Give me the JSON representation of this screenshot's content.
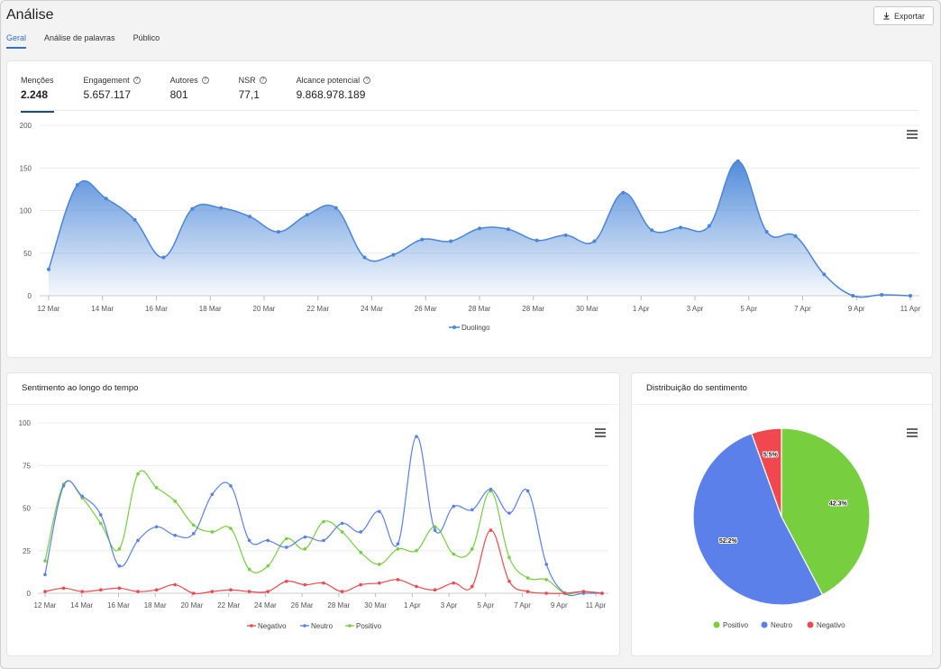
{
  "header": {
    "title": "Análise",
    "export_label": "Exportar",
    "tabs": [
      {
        "label": "Geral",
        "active": true
      },
      {
        "label": "Análise de palavras",
        "active": false
      },
      {
        "label": "Público",
        "active": false
      }
    ]
  },
  "kpis": [
    {
      "label": "Menções",
      "value": "2.248",
      "active": true,
      "help": false
    },
    {
      "label": "Engagement",
      "value": "5.657.117",
      "active": false,
      "help": true
    },
    {
      "label": "Autores",
      "value": "801",
      "active": false,
      "help": true
    },
    {
      "label": "NSR",
      "value": "77,1",
      "active": false,
      "help": true
    },
    {
      "label": "Alcance potencial",
      "value": "9.868.978.189",
      "active": false,
      "help": true
    }
  ],
  "icons": {
    "help": "?",
    "download": "download-icon",
    "menu": "hamburger-menu-icon"
  },
  "colors": {
    "accent": "#2f6fd1",
    "duolingo": "#4a86d8",
    "negativo": "#f0484e",
    "neutro": "#5b80ea",
    "positivo": "#77cf40"
  },
  "chart_data": [
    {
      "type": "area",
      "title": "",
      "xlabel": "",
      "ylabel": "",
      "x_ticks": [
        "12 Mar",
        "14 Mar",
        "16 Mar",
        "18 Mar",
        "20 Mar",
        "22 Mar",
        "24 Mar",
        "26 Mar",
        "28 Mar",
        "28 Mar",
        "30 Mar",
        "1 Apr",
        "3 Apr",
        "5 Apr",
        "7 Apr",
        "9 Apr",
        "11 Apr"
      ],
      "y_ticks": [
        "0",
        "50",
        "100",
        "150",
        "200"
      ],
      "ylim": [
        0,
        200
      ],
      "grid": true,
      "legend": "bottom-center",
      "series": [
        {
          "name": "Duolingo",
          "values": [
            31,
            130,
            114,
            89,
            45,
            102,
            103,
            93,
            75,
            95,
            103,
            45,
            48,
            66,
            64,
            79,
            78,
            65,
            71,
            64,
            121,
            77,
            80,
            82,
            158,
            75,
            70,
            25,
            0,
            1,
            0
          ]
        }
      ]
    },
    {
      "type": "line",
      "title": "Sentimento ao longo do tempo",
      "xlabel": "",
      "ylabel": "",
      "x_ticks": [
        "12 Mar",
        "14 Mar",
        "16 Mar",
        "18 Mar",
        "20 Mar",
        "22 Mar",
        "24 Mar",
        "26 Mar",
        "28 Mar",
        "30 Mar",
        "1 Apr",
        "3 Apr",
        "5 Apr",
        "7 Apr",
        "9 Apr",
        "11 Apr"
      ],
      "y_ticks": [
        "0",
        "25",
        "50",
        "75",
        "100"
      ],
      "ylim": [
        0,
        100
      ],
      "grid": true,
      "legend": "bottom-center",
      "series": [
        {
          "name": "Negativo",
          "values": [
            1,
            3,
            1,
            2,
            3,
            1,
            2,
            5,
            0,
            1,
            2,
            1,
            1,
            7,
            5,
            6,
            1,
            5,
            6,
            8,
            4,
            2,
            6,
            4,
            37,
            7,
            1,
            0,
            0,
            1,
            0
          ]
        },
        {
          "name": "Neutro",
          "values": [
            11,
            63,
            57,
            46,
            16,
            31,
            39,
            34,
            35,
            58,
            63,
            31,
            31,
            27,
            33,
            31,
            41,
            36,
            48,
            29,
            92,
            37,
            51,
            49,
            61,
            47,
            60,
            17,
            0,
            0,
            0
          ]
        },
        {
          "name": "Positivo",
          "values": [
            19,
            64,
            56,
            41,
            26,
            70,
            62,
            54,
            40,
            36,
            38,
            14,
            16,
            32,
            26,
            42,
            36,
            24,
            17,
            26,
            25,
            39,
            23,
            26,
            60,
            21,
            9,
            8,
            0,
            1,
            0
          ]
        }
      ]
    },
    {
      "type": "pie",
      "title": "Distribuição do sentimento",
      "legend": "bottom-center",
      "slices": [
        {
          "name": "Positivo",
          "value": 42.3,
          "label": "42.3%"
        },
        {
          "name": "Neutro",
          "value": 52.2,
          "label": "52.2%"
        },
        {
          "name": "Negativo",
          "value": 5.5,
          "label": "5.5%"
        }
      ]
    }
  ]
}
